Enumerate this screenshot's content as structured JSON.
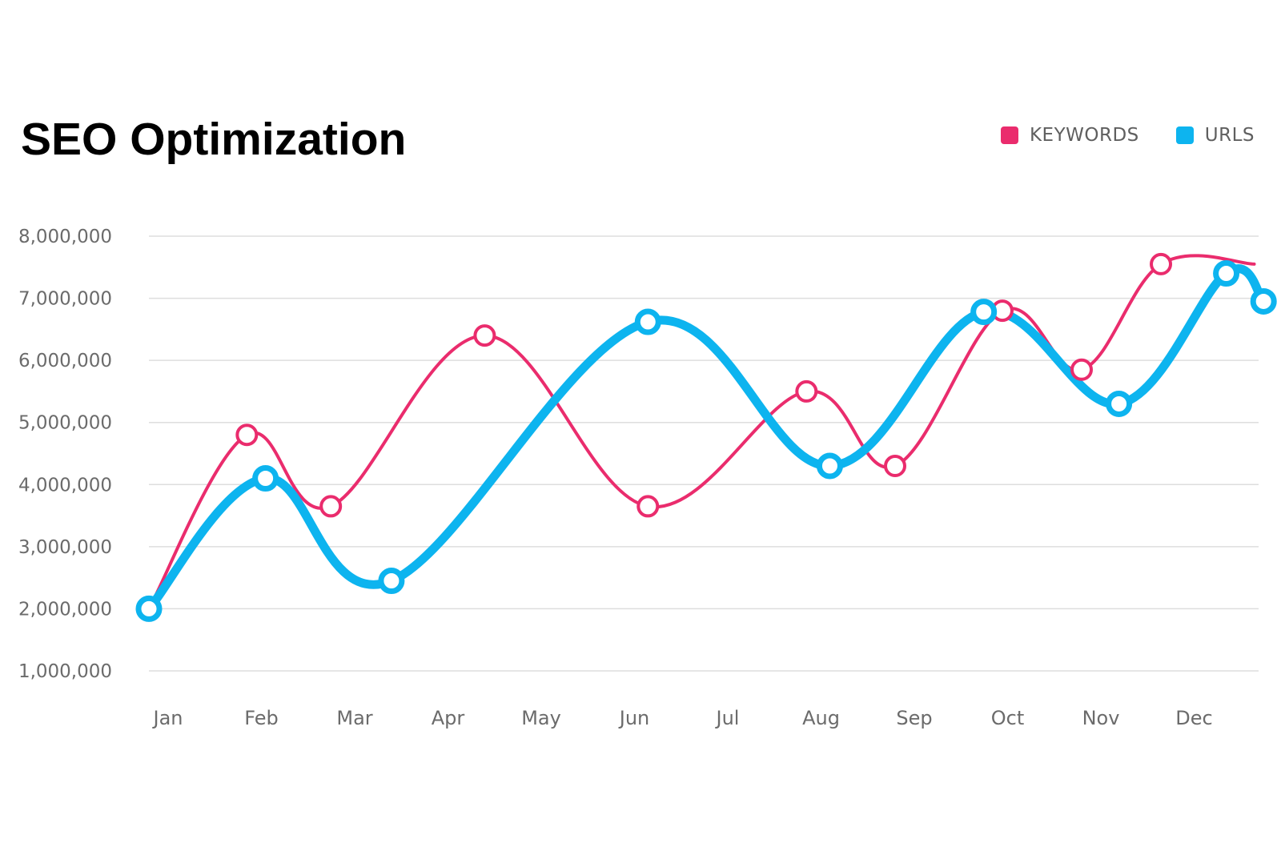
{
  "colors": {
    "keywords": "#ea2c6d",
    "urls": "#0db4ef",
    "grid": "#dedede",
    "text": "#6b6b6b"
  },
  "chart_data": {
    "type": "line",
    "title": "SEO Optimization",
    "xlabel": "",
    "ylabel": "",
    "legend": "top-right",
    "grid": true,
    "ylim": [
      1000000,
      8000000
    ],
    "yticks": [
      "1,000,000",
      "2,000,000",
      "3,000,000",
      "4,000,000",
      "5,000,000",
      "6,000,000",
      "7,000,000",
      "8,000,000"
    ],
    "ytick_values": [
      1000000,
      2000000,
      3000000,
      4000000,
      5000000,
      6000000,
      7000000,
      8000000
    ],
    "categories": [
      "Jan",
      "Feb",
      "Mar",
      "Apr",
      "May",
      "Jun",
      "Jul",
      "Aug",
      "Sep",
      "Oct",
      "Nov",
      "Dec"
    ],
    "xlim": [
      0,
      12
    ],
    "series": [
      {
        "name": "KEYWORDS",
        "color": "#ea2c6d",
        "x": [
          0,
          1.05,
          1.95,
          3.6,
          5.35,
          7.05,
          8.0,
          9.15,
          10.0,
          10.85,
          11.85
        ],
        "y": [
          2000000,
          4800000,
          3650000,
          6400000,
          3650000,
          5500000,
          4300000,
          6800000,
          5850000,
          7550000,
          7550000
        ]
      },
      {
        "name": "URLS",
        "color": "#0db4ef",
        "x": [
          0,
          1.25,
          2.6,
          5.35,
          7.3,
          8.95,
          10.4,
          11.55,
          11.95
        ],
        "y": [
          2000000,
          4100000,
          2450000,
          6620000,
          4300000,
          6780000,
          5300000,
          7400000,
          6950000
        ]
      }
    ]
  }
}
